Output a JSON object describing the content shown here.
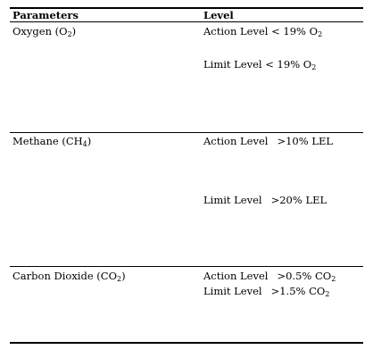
{
  "table": {
    "headers": {
      "parameters": "Parameters",
      "level": "Level"
    },
    "rows": [
      {
        "parameter": {
          "name": "Oxygen (O",
          "sub": "2",
          "close": ")"
        },
        "levels": [
          {
            "label": "Action Level",
            "value": "< 19% O",
            "sub": "2"
          },
          {
            "label": "Limit Level",
            "value": "< 19% O",
            "sub": "2"
          }
        ]
      },
      {
        "parameter": {
          "name": "Methane (CH",
          "sub": "4",
          "close": ")"
        },
        "levels": [
          {
            "label": "Action Level",
            "value": ">10% LEL",
            "sub": ""
          },
          {
            "label": "Limit Level",
            "value": ">20% LEL",
            "sub": ""
          }
        ]
      },
      {
        "parameter": {
          "name": "Carbon Dioxide (CO",
          "sub": "2",
          "close": ")"
        },
        "levels": [
          {
            "label": "Action Level",
            "value": ">0.5% CO",
            "sub": "2"
          },
          {
            "label": "Limit Level",
            "value": ">1.5% CO",
            "sub": "2"
          }
        ]
      }
    ]
  }
}
